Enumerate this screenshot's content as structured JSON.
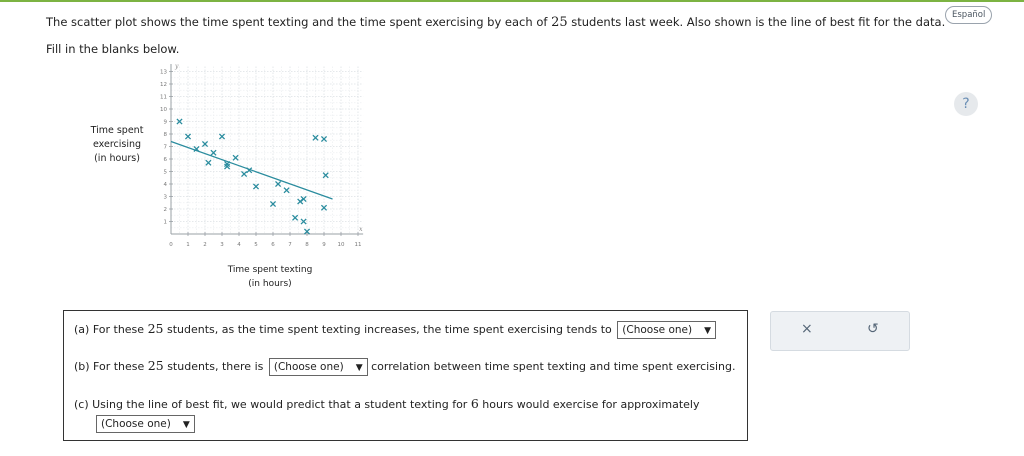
{
  "header": {
    "prompt_pre": "The scatter plot shows the time spent texting and the time spent exercising by each of ",
    "prompt_num": "25",
    "prompt_post": " students last week. Also shown is the line of best fit for the data.",
    "fill_text": "Fill in the blanks below.",
    "language_button": "Español",
    "help_label": "?"
  },
  "chart_data": {
    "type": "scatter",
    "title": "",
    "xlabel": "Time spent texting\n(in hours)",
    "ylabel": "Time spent\nexercising\n(in hours)",
    "x_axis_name": "x",
    "y_axis_name": "y",
    "xlim": [
      0,
      11
    ],
    "ylim": [
      0,
      13
    ],
    "xticks": [
      0,
      1,
      2,
      3,
      4,
      5,
      6,
      7,
      8,
      9,
      10,
      11
    ],
    "yticks": [
      1,
      2,
      3,
      4,
      5,
      6,
      7,
      8,
      9,
      10,
      11,
      12,
      13
    ],
    "grid": true,
    "series": [
      {
        "marker": "x",
        "color": "#2a8c9e",
        "points": [
          [
            0.5,
            9
          ],
          [
            1,
            7.8
          ],
          [
            1.5,
            6.8
          ],
          [
            2,
            7.2
          ],
          [
            2.2,
            5.7
          ],
          [
            2.5,
            6.5
          ],
          [
            3,
            7.8
          ],
          [
            3.3,
            5.4
          ],
          [
            3.3,
            5.6
          ],
          [
            3.8,
            6.1
          ],
          [
            4.3,
            4.8
          ],
          [
            4.6,
            5.1
          ],
          [
            5,
            3.8
          ],
          [
            6,
            2.4
          ],
          [
            6.3,
            4
          ],
          [
            6.8,
            3.5
          ],
          [
            7.3,
            1.3
          ],
          [
            7.6,
            2.6
          ],
          [
            7.8,
            2.8
          ],
          [
            7.8,
            1
          ],
          [
            8,
            0.2
          ],
          [
            8.5,
            7.7
          ],
          [
            9,
            7.6
          ],
          [
            9.1,
            4.7
          ],
          [
            9,
            2.1
          ]
        ]
      }
    ],
    "best_fit": {
      "x1": 0,
      "y1": 7.4,
      "x2": 9.5,
      "y2": 2.8,
      "color": "#2a8c9e"
    }
  },
  "questions": [
    {
      "pre": "(a) For these ",
      "num": "25",
      "post": " students, as the time spent texting increases, the time spent exercising tends to ",
      "dropdown": "(Choose one)"
    },
    {
      "pre": "(b) For these ",
      "num": "25",
      "post": " students, there is ",
      "dropdown": "(Choose one)",
      "after": " correlation between time spent texting and time spent exercising."
    },
    {
      "pre": "(c) Using the line of best fit, we would predict that a student texting for ",
      "num": "6",
      "post": " hours would exercise for approximately",
      "dropdown": "(Choose one)"
    }
  ],
  "tools": {
    "clear": "×",
    "undo": "↺"
  }
}
